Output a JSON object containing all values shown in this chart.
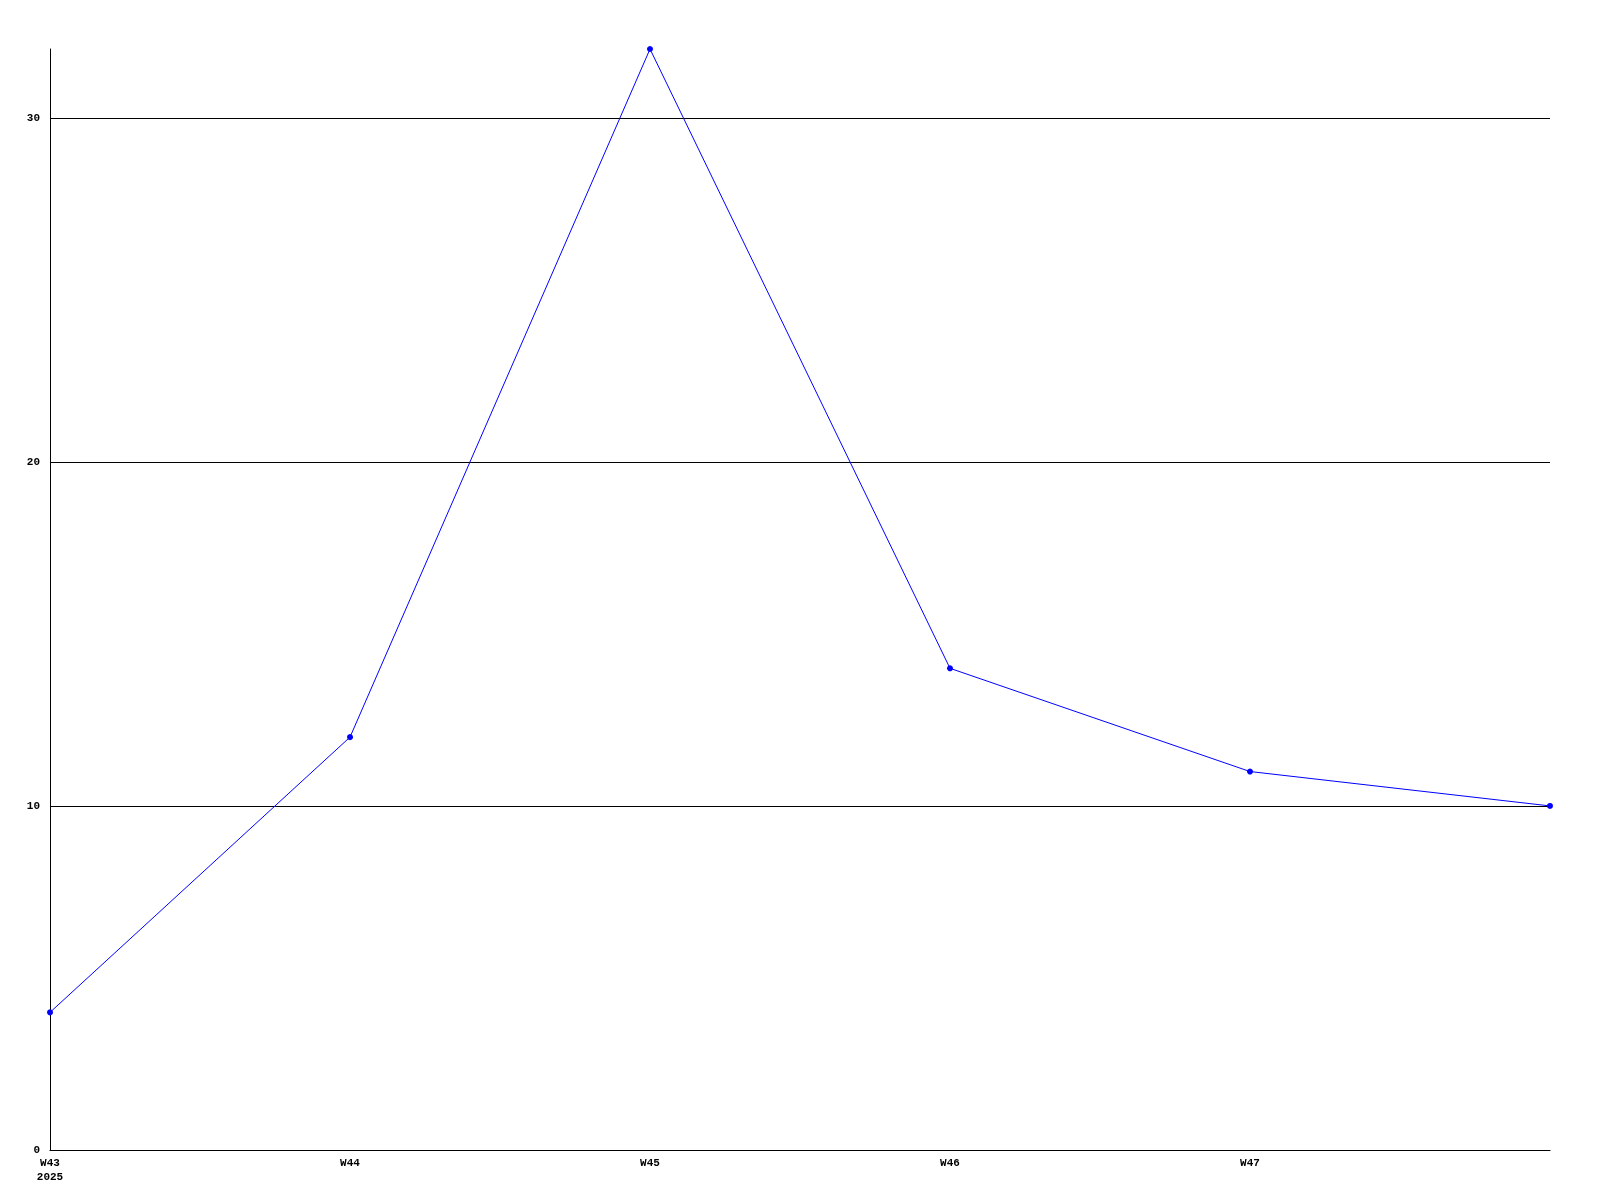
{
  "chart_data": {
    "type": "line",
    "categories": [
      "W43\n2025",
      "W44",
      "W45",
      "W46",
      "W47",
      null
    ],
    "series": [
      {
        "color": "#0000ff",
        "values": [
          4,
          12,
          32,
          14,
          11,
          10
        ]
      }
    ],
    "ylim": [
      0,
      32
    ],
    "yticks": [
      0,
      10,
      20,
      30
    ],
    "grid": "y",
    "marker": "circle",
    "line_style": "solid"
  }
}
